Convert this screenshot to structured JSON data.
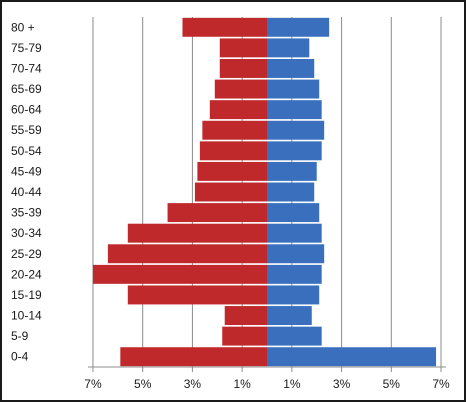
{
  "chart_data": {
    "type": "bar",
    "orientation": "horizontal",
    "layout": "population-pyramid",
    "categories": [
      "80 +",
      "75-79",
      "70-74",
      "65-69",
      "60-64",
      "55-59",
      "50-54",
      "45-49",
      "40-44",
      "35-39",
      "30-34",
      "25-29",
      "20-24",
      "15-19",
      "10-14",
      "5-9",
      "0-4"
    ],
    "series": [
      {
        "side": "left",
        "color": "#c0292b",
        "values": [
          3.4,
          1.9,
          1.9,
          2.1,
          2.3,
          2.6,
          2.7,
          2.8,
          2.9,
          4.0,
          5.6,
          6.4,
          7.0,
          5.6,
          1.7,
          1.8,
          5.9
        ]
      },
      {
        "side": "right",
        "color": "#3a6fbe",
        "values": [
          2.5,
          1.7,
          1.9,
          2.1,
          2.2,
          2.3,
          2.2,
          2.0,
          1.9,
          2.1,
          2.2,
          2.3,
          2.2,
          2.1,
          1.8,
          2.2,
          6.8
        ]
      }
    ],
    "xlim": [
      -7.2,
      7.2
    ],
    "ticks": [
      -7,
      -5,
      -3,
      -1,
      1,
      3,
      5,
      7
    ],
    "tick_labels": [
      "7%",
      "5%",
      "3%",
      "1%",
      "1%",
      "3%",
      "5%",
      "7%"
    ],
    "title": "",
    "xlabel": "",
    "ylabel": "",
    "grid": "vertical",
    "legend": "none"
  }
}
